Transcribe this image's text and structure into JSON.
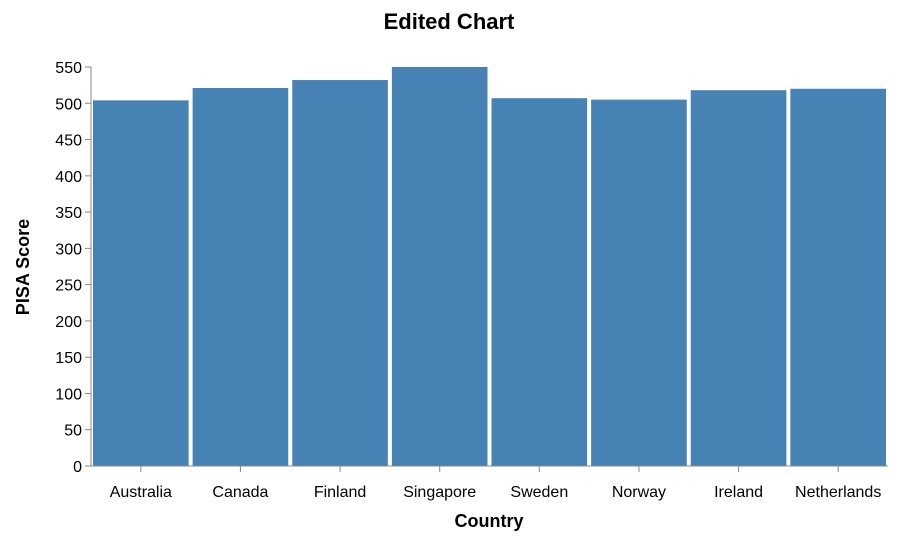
{
  "chart_data": {
    "type": "bar",
    "title": "Edited Chart",
    "xlabel": "Country",
    "ylabel": "PISA Score",
    "categories": [
      "Australia",
      "Canada",
      "Finland",
      "Singapore",
      "Sweden",
      "Norway",
      "Ireland",
      "Netherlands"
    ],
    "values": [
      504,
      521,
      532,
      550,
      507,
      505,
      518,
      520
    ],
    "ylim": [
      0,
      550
    ],
    "yticks": [
      0,
      50,
      100,
      150,
      200,
      250,
      300,
      350,
      400,
      450,
      500,
      550
    ],
    "bar_color": "#4682b4",
    "grid": false,
    "legend": "none"
  }
}
